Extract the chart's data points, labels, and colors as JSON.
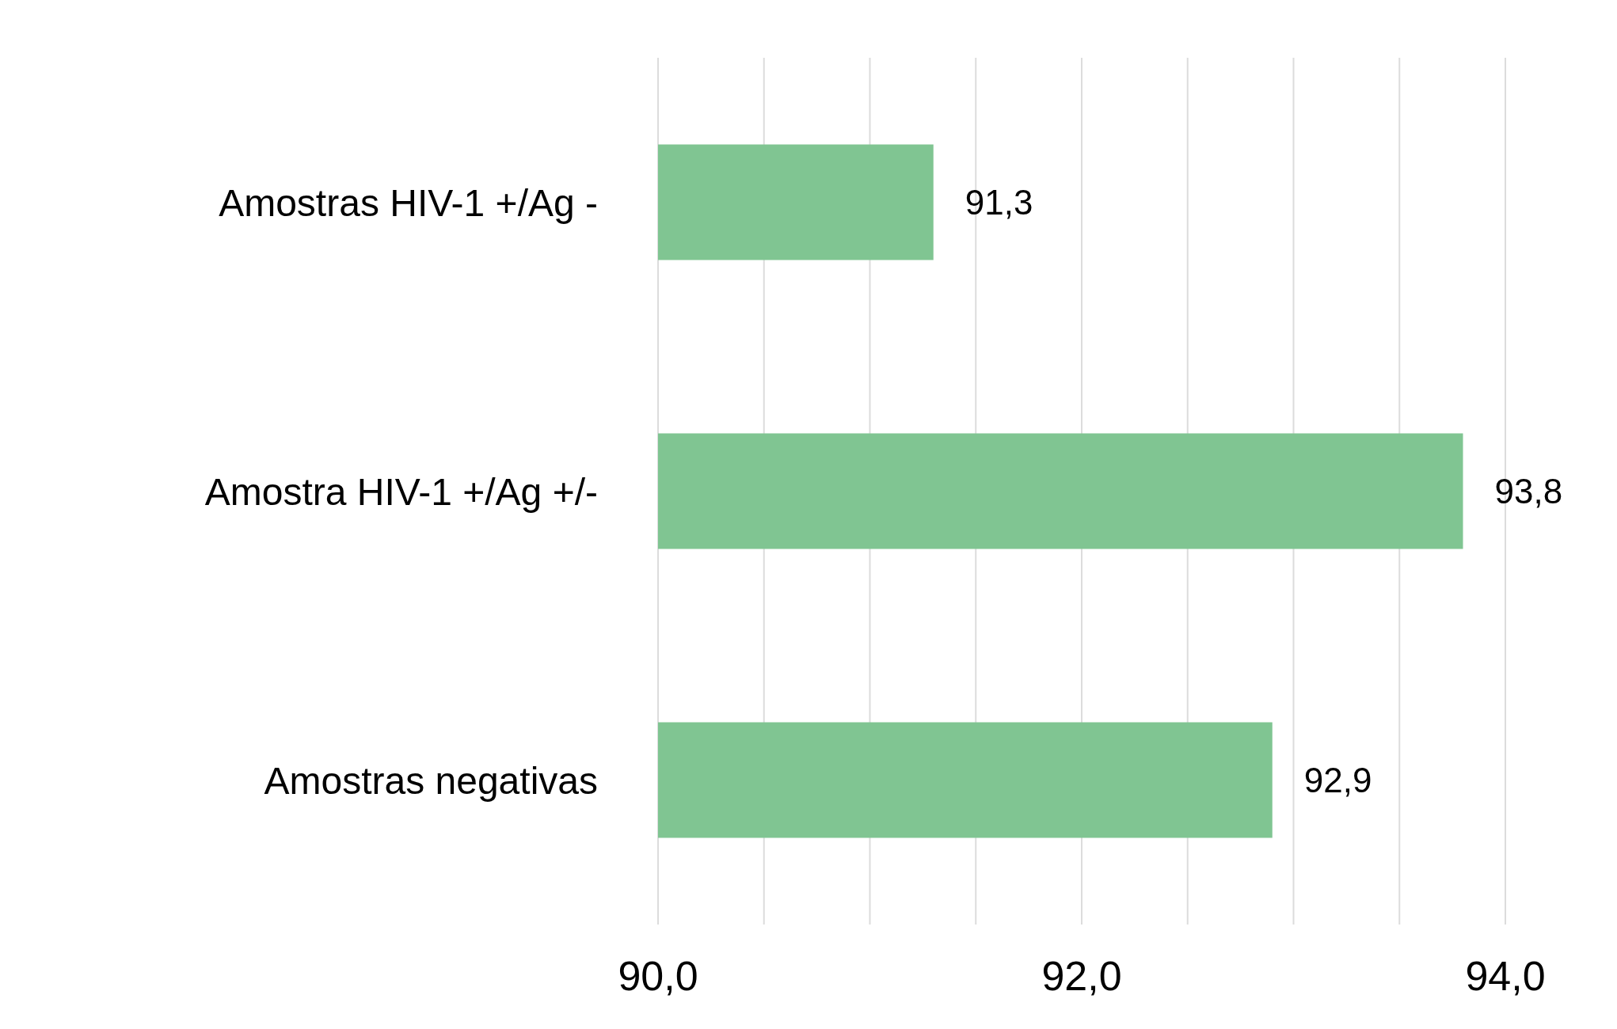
{
  "chart_data": {
    "type": "bar",
    "orientation": "horizontal",
    "categories": [
      "Amostras HIV-1 +/Ag -",
      "Amostra HIV-1 +/Ag +/-",
      "Amostras negativas"
    ],
    "values": [
      91.3,
      93.8,
      92.9
    ],
    "value_labels": [
      "91,3",
      "93,8",
      "92,9"
    ],
    "color": "#80c592",
    "xlim": [
      90,
      94
    ],
    "xticks": [
      {
        "value": 90,
        "label": "90,0"
      },
      {
        "value": 90.5,
        "label": null
      },
      {
        "value": 91,
        "label": null
      },
      {
        "value": 91.5,
        "label": null
      },
      {
        "value": 92,
        "label": "92,0"
      },
      {
        "value": 92.5,
        "label": null
      },
      {
        "value": 93,
        "label": null
      },
      {
        "value": 93.5,
        "label": null
      },
      {
        "value": 94,
        "label": "94,0"
      }
    ],
    "grid": "x",
    "legend": false
  }
}
